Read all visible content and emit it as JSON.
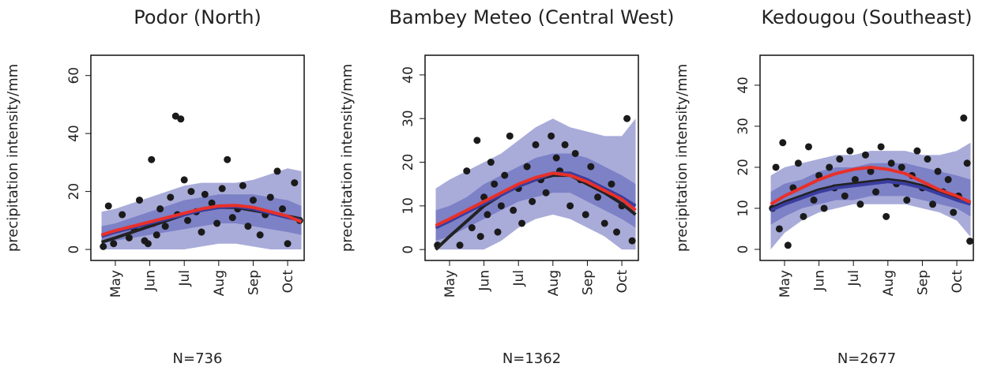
{
  "chart_data": [
    {
      "type": "scatter",
      "title": "Podor (North)",
      "ylabel": "precipitation intensity/mm",
      "annotation": "N=736",
      "xlim": [
        4.29,
        10.48
      ],
      "xticks": [
        {
          "value": 5,
          "label": "May"
        },
        {
          "value": 6,
          "label": "Jun"
        },
        {
          "value": 7,
          "label": "Jul"
        },
        {
          "value": 8,
          "label": "Aug"
        },
        {
          "value": 9,
          "label": "Sep"
        },
        {
          "value": 10,
          "label": "Oct"
        }
      ],
      "ylim": [
        -3.8,
        67
      ],
      "yticks": [
        0,
        20,
        40,
        60
      ],
      "points": {
        "color": "#1a1a1a",
        "x": [
          4.65,
          4.8,
          4.95,
          5.2,
          5.4,
          5.55,
          5.7,
          5.85,
          5.95,
          6.05,
          6.1,
          6.2,
          6.3,
          6.45,
          6.6,
          6.75,
          6.8,
          6.9,
          7.0,
          7.1,
          7.2,
          7.35,
          7.5,
          7.6,
          7.8,
          7.95,
          8.1,
          8.25,
          8.4,
          8.55,
          8.7,
          8.85,
          9.0,
          9.2,
          9.35,
          9.5,
          9.7,
          9.85,
          10.0,
          10.2,
          10.35
        ],
        "values": [
          1,
          15,
          2,
          12,
          4,
          7,
          17,
          3,
          2,
          31,
          9,
          5,
          14,
          8,
          18,
          46,
          12,
          45,
          24,
          10,
          20,
          13,
          6,
          19,
          16,
          9,
          21,
          31,
          11,
          14,
          22,
          8,
          17,
          5,
          12,
          18,
          27,
          14,
          2,
          23,
          10
        ]
      },
      "curve_x": [
        4.6,
        5.0,
        5.5,
        6.0,
        6.5,
        7.0,
        7.5,
        8.0,
        8.5,
        9.0,
        9.5,
        10.0,
        10.4
      ],
      "bands": [
        {
          "color": "#a9acd9",
          "lower": [
            0,
            0,
            0,
            0,
            0,
            0,
            1,
            2,
            2,
            1,
            0,
            0,
            0
          ],
          "upper": [
            13,
            14,
            16,
            18,
            20,
            22,
            23,
            23,
            23,
            24,
            26,
            28,
            27
          ]
        },
        {
          "color": "#7d81c6",
          "lower": [
            2,
            3,
            4,
            5,
            6,
            7,
            8,
            9,
            9,
            8,
            7,
            6,
            5
          ],
          "upper": [
            8,
            9,
            11,
            13,
            15,
            17,
            18,
            19,
            19,
            19,
            18,
            17,
            15
          ]
        }
      ],
      "series": [
        {
          "color": "#222222",
          "values": [
            2.5,
            4,
            6,
            8,
            10,
            12,
            13.5,
            14.5,
            14.5,
            13.5,
            12.5,
            11.5,
            10.5
          ]
        },
        {
          "color": "#3a3d9e",
          "values": [
            4.5,
            6,
            7.5,
            9,
            10.5,
            12,
            13.5,
            14.5,
            14.8,
            14,
            12.5,
            11,
            10
          ]
        },
        {
          "color": "#e8302a",
          "values": [
            5,
            6.5,
            8,
            9.5,
            11,
            12.5,
            14,
            15,
            15.2,
            14.5,
            13,
            11.5,
            9.5
          ]
        }
      ]
    },
    {
      "type": "scatter",
      "title": "Bambey Meteo (Central West)",
      "ylabel": "precipitation intensity/mm",
      "annotation": "N=1362",
      "xlim": [
        4.29,
        10.48
      ],
      "xticks": [
        {
          "value": 5,
          "label": "May"
        },
        {
          "value": 6,
          "label": "Jun"
        },
        {
          "value": 7,
          "label": "Jul"
        },
        {
          "value": 8,
          "label": "Aug"
        },
        {
          "value": 9,
          "label": "Sep"
        },
        {
          "value": 10,
          "label": "Oct"
        }
      ],
      "ylim": [
        -2.5,
        44.5
      ],
      "yticks": [
        0,
        10,
        20,
        30,
        40
      ],
      "points": {
        "color": "#1a1a1a",
        "x": [
          4.65,
          5.3,
          5.5,
          5.65,
          5.8,
          5.9,
          6.0,
          6.1,
          6.2,
          6.3,
          6.4,
          6.5,
          6.6,
          6.75,
          6.85,
          7.0,
          7.1,
          7.25,
          7.4,
          7.5,
          7.65,
          7.8,
          7.95,
          8.1,
          8.2,
          8.35,
          8.5,
          8.65,
          8.8,
          8.95,
          9.1,
          9.3,
          9.5,
          9.7,
          9.85,
          10.0,
          10.15,
          10.3
        ],
        "values": [
          1,
          1,
          18,
          5,
          25,
          3,
          12,
          8,
          20,
          15,
          4,
          10,
          17,
          26,
          9,
          14,
          6,
          19,
          11,
          24,
          16,
          13,
          26,
          21,
          18,
          24,
          10,
          22,
          16,
          8,
          19,
          12,
          6,
          15,
          4,
          10,
          30,
          2
        ]
      },
      "curve_x": [
        4.6,
        5.0,
        5.5,
        6.0,
        6.5,
        7.0,
        7.5,
        8.0,
        8.5,
        9.0,
        9.5,
        10.0,
        10.4
      ],
      "bands": [
        {
          "color": "#a9acd9",
          "lower": [
            0,
            0,
            0,
            0,
            2,
            5,
            7,
            8,
            7,
            5,
            3,
            0,
            0
          ],
          "upper": [
            14,
            16,
            18,
            20,
            22,
            25,
            28,
            30,
            28,
            27,
            26,
            26,
            30
          ]
        },
        {
          "color": "#7d81c6",
          "lower": [
            2,
            3,
            5,
            7,
            9,
            11,
            12,
            13,
            13,
            11,
            9,
            7,
            5
          ],
          "upper": [
            9,
            10,
            12,
            15,
            17,
            19,
            21,
            22,
            22,
            21,
            19,
            17,
            15
          ]
        }
      ],
      "series": [
        {
          "color": "#222222",
          "values": [
            0,
            3,
            6.5,
            10,
            12.5,
            14.5,
            16,
            17,
            17,
            15,
            13,
            10.5,
            8
          ]
        },
        {
          "color": "#3a3d9e",
          "values": [
            5,
            6.5,
            8.5,
            10.5,
            12.5,
            14.5,
            16,
            17.5,
            17.5,
            16,
            14,
            12,
            10
          ]
        },
        {
          "color": "#e8302a",
          "values": [
            5.5,
            7,
            9,
            11,
            13,
            15,
            16.5,
            17.5,
            17,
            15.5,
            13.5,
            11.5,
            9
          ]
        }
      ]
    },
    {
      "type": "scatter",
      "title": "Kedougou (Southeast)",
      "ylabel": "precipitation intensity/mm",
      "annotation": "N=2677",
      "xlim": [
        4.29,
        10.48
      ],
      "xticks": [
        {
          "value": 5,
          "label": "May"
        },
        {
          "value": 6,
          "label": "Jun"
        },
        {
          "value": 7,
          "label": "Jul"
        },
        {
          "value": 8,
          "label": "Aug"
        },
        {
          "value": 9,
          "label": "Sep"
        },
        {
          "value": 10,
          "label": "Oct"
        }
      ],
      "ylim": [
        -2.7,
        47.3
      ],
      "yticks": [
        0,
        10,
        20,
        30,
        40
      ],
      "points": {
        "color": "#1a1a1a",
        "x": [
          4.65,
          4.75,
          4.85,
          4.95,
          5.1,
          5.25,
          5.4,
          5.55,
          5.7,
          5.85,
          6.0,
          6.15,
          6.3,
          6.45,
          6.6,
          6.75,
          6.9,
          7.05,
          7.2,
          7.35,
          7.5,
          7.65,
          7.8,
          7.95,
          8.1,
          8.25,
          8.4,
          8.55,
          8.7,
          8.85,
          9.0,
          9.15,
          9.3,
          9.45,
          9.6,
          9.75,
          9.9,
          10.05,
          10.2,
          10.3,
          10.38
        ],
        "values": [
          10,
          20,
          5,
          26,
          1,
          15,
          21,
          8,
          25,
          12,
          18,
          10,
          20,
          15,
          22,
          13,
          24,
          17,
          11,
          23,
          19,
          14,
          25,
          8,
          21,
          16,
          20,
          12,
          18,
          24,
          15,
          22,
          11,
          19,
          14,
          17,
          9,
          13,
          32,
          21,
          2
        ]
      },
      "curve_x": [
        4.6,
        5.0,
        5.5,
        6.0,
        6.5,
        7.0,
        7.5,
        8.0,
        8.5,
        9.0,
        9.5,
        10.0,
        10.4
      ],
      "bands": [
        {
          "color": "#a9acd9",
          "lower": [
            0,
            4,
            7,
            9,
            10,
            11,
            11,
            11,
            11,
            10,
            9,
            7,
            3
          ],
          "upper": [
            18,
            20,
            21,
            22,
            23,
            23,
            24,
            24,
            24,
            23,
            23,
            24,
            26
          ]
        },
        {
          "color": "#7d81c6",
          "lower": [
            6,
            8,
            10,
            11,
            12,
            12,
            13,
            13,
            13,
            12,
            11,
            10,
            8
          ],
          "upper": [
            14,
            16,
            17,
            19,
            20,
            20,
            21,
            21,
            21,
            20,
            19,
            18,
            17
          ]
        }
      ],
      "series": [
        {
          "color": "#222222",
          "values": [
            10,
            11.5,
            13,
            14.5,
            15.5,
            16,
            16.5,
            17,
            16.5,
            15.5,
            14,
            12.5,
            11.5
          ]
        },
        {
          "color": "#3a3d9e",
          "values": [
            9.5,
            11,
            12.5,
            14,
            15,
            15.5,
            16,
            16.5,
            16,
            15,
            13.5,
            12,
            11
          ]
        },
        {
          "color": "#e8302a",
          "values": [
            11,
            13,
            15,
            17,
            18.5,
            19.5,
            20,
            19.5,
            18.5,
            16.5,
            14.5,
            13,
            11.5
          ]
        }
      ]
    }
  ]
}
